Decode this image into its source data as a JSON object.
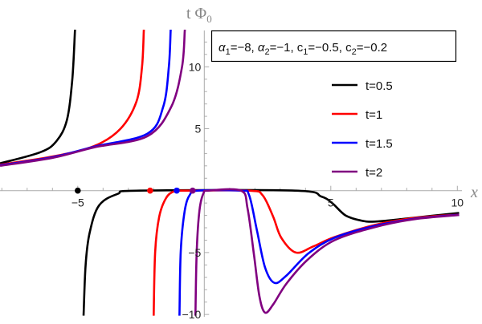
{
  "chart_data": {
    "type": "line",
    "title": "",
    "xlabel": "x",
    "ylabel": "t Φ",
    "ylabel_subscript": "0",
    "xlim": [
      -8.07,
      10.5
    ],
    "ylim": [
      -10.1,
      13
    ],
    "x_ticks": [
      -5,
      5,
      10
    ],
    "x_tick_labels": [
      "−5",
      "5",
      "10"
    ],
    "y_ticks": [
      -10,
      -5,
      5,
      10
    ],
    "y_tick_labels": [
      "−10",
      "−5",
      "5",
      "10"
    ],
    "grid": false,
    "legend_position": "top-right",
    "parameters_label": {
      "parts": [
        {
          "sym": "α",
          "sub": "1",
          "val": "=−8, "
        },
        {
          "sym": "α",
          "sub": "2",
          "val": "=−1, "
        },
        {
          "sym": "c",
          "sub": "1",
          "val": "=−0.5, "
        },
        {
          "sym": "c",
          "sub": "2",
          "val": "=−0.2"
        }
      ]
    },
    "series": [
      {
        "name": "t=0.5",
        "color": "#000000",
        "marker_x": -5,
        "branches": [
          [
            [
              -8.07,
              2.2
            ],
            [
              -6.48,
              3.1
            ],
            [
              -5.84,
              4.0
            ],
            [
              -5.43,
              5.7
            ],
            [
              -5.22,
              8.9
            ],
            [
              -5.11,
              12.9
            ],
            [
              -5.09,
              13.2
            ]
          ],
          [
            [
              -4.77,
              -10.1
            ],
            [
              -4.69,
              -6.0
            ],
            [
              -4.53,
              -3.4
            ],
            [
              -4.16,
              -1.2
            ],
            [
              -3.42,
              -0.26
            ],
            [
              -2.57,
              0
            ],
            [
              3.57,
              0
            ],
            [
              4.62,
              -0.47
            ],
            [
              5.05,
              -1.0
            ],
            [
              5.58,
              -2.0
            ],
            [
              6.21,
              -2.42
            ],
            [
              6.74,
              -2.5
            ],
            [
              7.8,
              -2.3
            ],
            [
              8.96,
              -2.04
            ],
            [
              10.07,
              -1.8
            ]
          ]
        ]
      },
      {
        "name": "t=1",
        "color": "#ff0000",
        "marker_x": -2.14,
        "branches": [
          [
            [
              -8.07,
              2.1
            ],
            [
              -6.0,
              2.75
            ],
            [
              -4.35,
              3.6
            ],
            [
              -3.31,
              5.0
            ],
            [
              -2.68,
              7.2
            ],
            [
              -2.46,
              10.0
            ],
            [
              -2.39,
              12.9
            ],
            [
              -2.38,
              13.2
            ]
          ],
          [
            [
              -2.0,
              -10.1
            ],
            [
              -1.94,
              -4.9
            ],
            [
              -1.78,
              -2.1
            ],
            [
              -1.51,
              -0.6
            ],
            [
              -1.19,
              -0.05
            ],
            [
              -0.8,
              0
            ],
            [
              1.77,
              0
            ],
            [
              2.3,
              -0.37
            ],
            [
              2.72,
              -2.1
            ],
            [
              3.04,
              -3.8
            ],
            [
              3.62,
              -5.0
            ],
            [
              4.31,
              -4.5
            ],
            [
              5.15,
              -3.75
            ],
            [
              6.74,
              -2.77
            ],
            [
              8.33,
              -2.2
            ],
            [
              10.07,
              -1.93
            ]
          ]
        ]
      },
      {
        "name": "t=1.5",
        "color": "#0000ff",
        "marker_x": -1.09,
        "branches": [
          [
            [
              -8.07,
              2.05
            ],
            [
              -6.0,
              2.7
            ],
            [
              -4.35,
              3.55
            ],
            [
              -2.25,
              4.6
            ],
            [
              -1.62,
              6.8
            ],
            [
              -1.4,
              10.0
            ],
            [
              -1.33,
              12.9
            ],
            [
              -1.32,
              13.2
            ]
          ],
          [
            [
              -0.98,
              -10.1
            ],
            [
              -0.93,
              -4.9
            ],
            [
              -0.77,
              -1.6
            ],
            [
              -0.56,
              -0.3
            ],
            [
              -0.25,
              0
            ],
            [
              1.45,
              0
            ],
            [
              1.77,
              -0.37
            ],
            [
              2.08,
              -3.2
            ],
            [
              2.4,
              -6.2
            ],
            [
              2.77,
              -7.45
            ],
            [
              3.25,
              -6.85
            ],
            [
              4.1,
              -5.1
            ],
            [
              5.15,
              -3.8
            ],
            [
              6.74,
              -2.85
            ],
            [
              8.33,
              -2.27
            ],
            [
              10.07,
              -1.95
            ]
          ]
        ]
      },
      {
        "name": "t=2",
        "color": "#800080",
        "marker_x": -0.46,
        "branches": [
          [
            [
              -8.07,
              2.0
            ],
            [
              -6.0,
              2.65
            ],
            [
              -4.35,
              3.5
            ],
            [
              -2.25,
              4.4
            ],
            [
              -1.3,
              6.8
            ],
            [
              -0.88,
              10.0
            ],
            [
              -0.77,
              12.9
            ],
            [
              -0.76,
              13.2
            ]
          ],
          [
            [
              -0.35,
              -10.1
            ],
            [
              -0.3,
              -4.9
            ],
            [
              -0.19,
              -1.6
            ],
            [
              -0.03,
              -0.2
            ],
            [
              0.18,
              0
            ],
            [
              1.45,
              0
            ],
            [
              1.71,
              -1.45
            ],
            [
              1.97,
              -5.3
            ],
            [
              2.18,
              -8.55
            ],
            [
              2.4,
              -9.85
            ],
            [
              2.72,
              -9.2
            ],
            [
              3.25,
              -7.5
            ],
            [
              4.1,
              -5.55
            ],
            [
              5.15,
              -4.0
            ],
            [
              6.74,
              -2.95
            ],
            [
              8.33,
              -2.3
            ],
            [
              10.07,
              -1.97
            ]
          ]
        ]
      }
    ]
  }
}
